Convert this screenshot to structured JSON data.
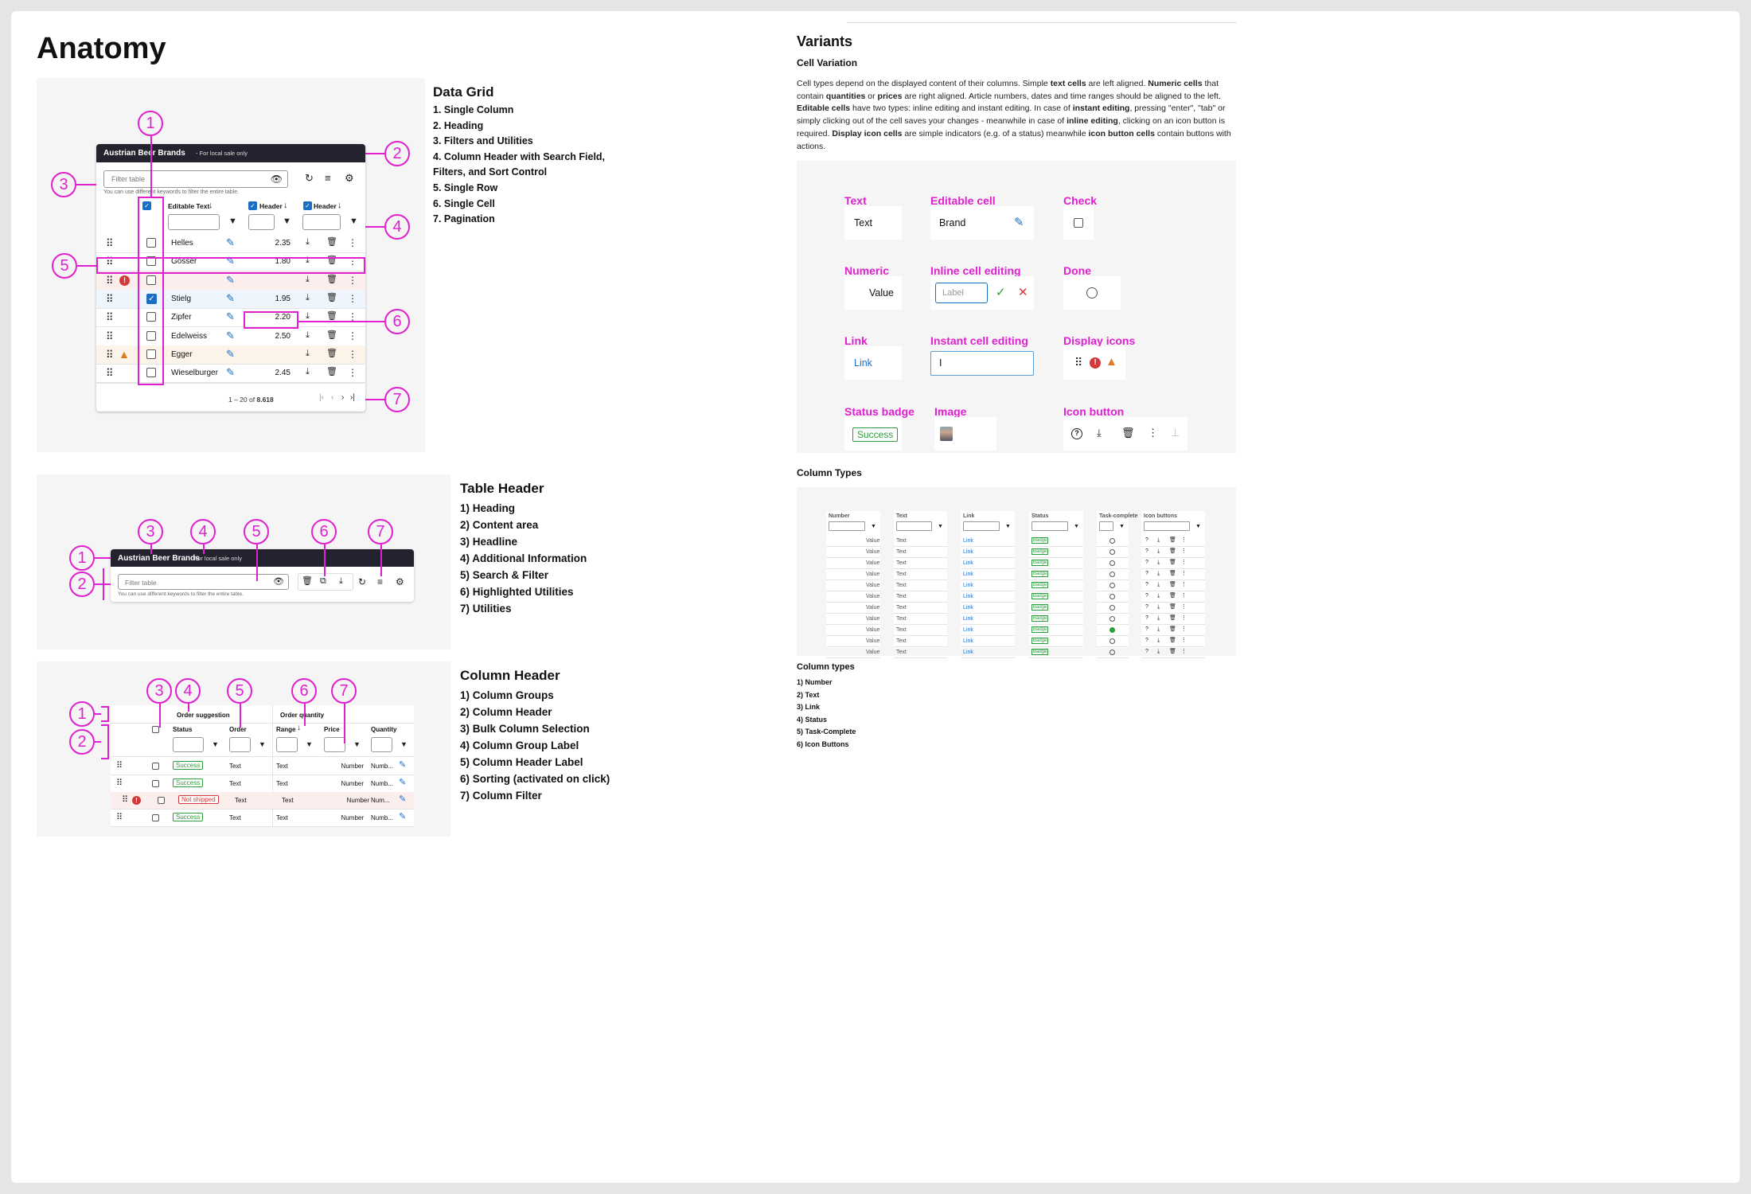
{
  "anatomy": {
    "title": "Anatomy"
  },
  "dg": {
    "heading": "Data Grid",
    "items": [
      "1. Single Column",
      "2. Heading",
      "3. Filters and Utilities",
      "4. Column Header with Search Field,",
      "Filters, and Sort Control",
      "5. Single Row",
      "6. Single Cell",
      "7. Pagination"
    ],
    "table_title": "Austrian Beer Brands",
    "table_subtitle": "- For local sale only",
    "filter_placeholder": "Filter table",
    "filter_hint": "You can use different keywords to filter the entire table.",
    "col_editable": "Editable Text",
    "col_header1": "Header",
    "col_header2": "Header",
    "rows": [
      {
        "name": "Helles",
        "value": "2.35"
      },
      {
        "name": "Gösser",
        "value": "1.80"
      },
      {
        "name": "",
        "value": ""
      },
      {
        "name": "Stielg",
        "value": "1.95"
      },
      {
        "name": "Zipfer",
        "value": "2.20"
      },
      {
        "name": "Edelweiss",
        "value": "2.50"
      },
      {
        "name": "Egger",
        "value": ""
      },
      {
        "name": "Wieselburger",
        "value": "2.45"
      }
    ],
    "pagination": {
      "range": "1 – 20",
      "of": "of",
      "total": "8.618"
    },
    "markers": [
      "1",
      "2",
      "3",
      "4",
      "5",
      "6",
      "7"
    ]
  },
  "th": {
    "heading": "Table Header",
    "items": [
      "1) Heading",
      "2) Content area",
      "3) Headline",
      "4) Additional Information",
      "5) Search & Filter",
      "6) Highlighted Utilities",
      "7) Utilities"
    ],
    "table_title": "Austrian Beer Brands",
    "table_subtitle": "- For local sale only",
    "filter_placeholder": "Filter table",
    "filter_hint": "You can use different keywords to filter the entire table.",
    "markers": [
      "1",
      "2",
      "3",
      "4",
      "5",
      "6",
      "7"
    ]
  },
  "ch": {
    "heading": "Column Header",
    "items": [
      "1) Column Groups",
      "2) Column Header",
      "3) Bulk Column Selection",
      "4) Column Group Label",
      "5) Column Header Label",
      "6) Sorting (activated on click)",
      "7) Column Filter"
    ],
    "group1": "Order suggestion",
    "group2": "Order quantity",
    "cols": [
      "Status",
      "Order",
      "Range",
      "Price",
      "Quantity"
    ],
    "rows": [
      {
        "status": "Success",
        "order": "Text",
        "range": "Text",
        "price": "Number",
        "qty": "Numb..."
      },
      {
        "status": "Success",
        "order": "Text",
        "range": "Text",
        "price": "Number",
        "qty": "Numb..."
      },
      {
        "status": "Not shipped",
        "order": "Text",
        "range": "Text",
        "price": "Number",
        "qty": "Num..."
      },
      {
        "status": "Success",
        "order": "Text",
        "range": "Text",
        "price": "Number",
        "qty": "Numb..."
      }
    ],
    "markers": [
      "1",
      "2",
      "3",
      "4",
      "5",
      "6",
      "7"
    ]
  },
  "variants": {
    "title": "Variants",
    "cell_variation": "Cell Variation",
    "para": [
      [
        [
          "Cell types depend on the displayed content of their columns. Simple ",
          0
        ],
        [
          "text cells",
          1
        ],
        [
          " are left aligned. ",
          0
        ],
        [
          "Numeric cells",
          1
        ],
        [
          " that",
          0
        ]
      ],
      [
        [
          "contain ",
          0
        ],
        [
          "quantities",
          1
        ],
        [
          " or ",
          0
        ],
        [
          "prices",
          1
        ],
        [
          " are right aligned. Article numbers, dates and time ranges should be aligned to the left.",
          0
        ]
      ],
      [
        [
          "Editable cells",
          1
        ],
        [
          " have two types: inline editing and instant editing. In case of ",
          0
        ],
        [
          "instant editing",
          1
        ],
        [
          ", pressing \"enter\", \"tab\" or",
          0
        ]
      ],
      [
        [
          "simply clicking out of the cell saves your changes - meanwhile in case of ",
          0
        ],
        [
          "inline editing",
          1
        ],
        [
          ", clicking on an icon button is",
          0
        ]
      ],
      [
        [
          "required. ",
          0
        ],
        [
          "Display icon cells",
          1
        ],
        [
          " are simple indicators (e.g. of a status) meanwhile ",
          0
        ],
        [
          "icon button cells",
          1
        ],
        [
          " contain buttons with",
          0
        ]
      ],
      [
        [
          "actions.",
          0
        ]
      ]
    ],
    "cells": {
      "text_label": "Text",
      "text_value": "Text",
      "editable_label": "Editable cell",
      "editable_value": "Brand",
      "check_label": "Check",
      "numeric_label": "Numeric",
      "numeric_value": "Value",
      "inline_label": "Inline cell editing",
      "inline_placeholder": "Label",
      "done_label": "Done",
      "link_label": "Link",
      "link_value": "Link",
      "instant_label": "Instant cell editing",
      "instant_value": "I",
      "display_label": "Display icons",
      "status_label": "Status badge",
      "status_value": "Success",
      "image_label": "Image",
      "iconbtn_label": "Icon button"
    },
    "column_types_heading": "Column Types",
    "ct": {
      "headers": [
        "Number",
        "Text",
        "Link",
        "Status",
        "Task-complete",
        "Icon buttons"
      ],
      "values": {
        "number": "Value",
        "text": "Text",
        "link": "Link",
        "badge": "Badge"
      },
      "rows": 11,
      "done_row": 8
    },
    "column_types_sub": "Column types",
    "column_types_list": [
      "1) Number",
      "2) Text",
      "3) Link",
      "4) Status",
      "5) Task-Complete",
      "6) Icon Buttons"
    ]
  },
  "colors": {
    "accent": "#e020d0",
    "link": "#1a6fc4",
    "success": "#2e9b3c",
    "error": "#d23a3a",
    "warning": "#e07a1f",
    "tableheader": "#23232f"
  }
}
